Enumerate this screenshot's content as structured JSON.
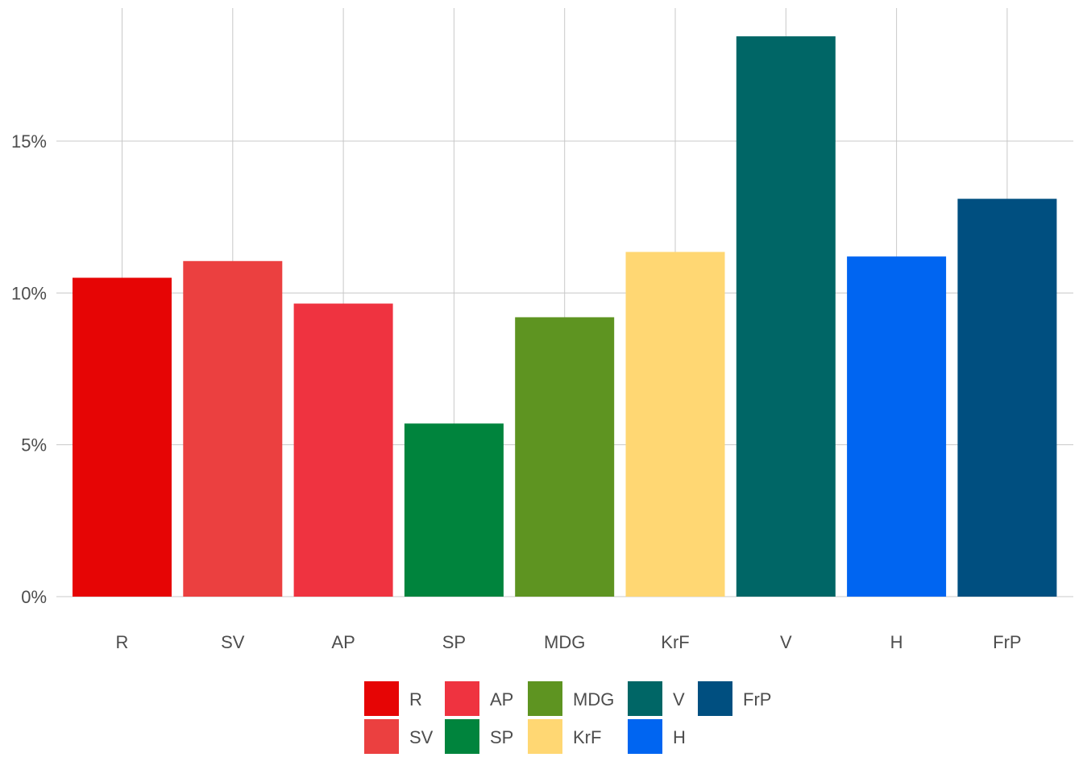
{
  "chart_data": {
    "type": "bar",
    "title": "",
    "xlabel": "",
    "ylabel": "",
    "categories": [
      "R",
      "SV",
      "AP",
      "SP",
      "MDG",
      "KrF",
      "V",
      "H",
      "FrP"
    ],
    "values": [
      10.5,
      11.05,
      9.65,
      5.7,
      9.2,
      11.35,
      18.45,
      11.2,
      13.1
    ],
    "colors": [
      "#e60505",
      "#eb4040",
      "#ef3340",
      "#00843d",
      "#5e9421",
      "#ffd773",
      "#006666",
      "#0065f1",
      "#004f80"
    ],
    "ylim": [
      0,
      19
    ],
    "y_ticks": [
      0,
      5,
      10,
      15
    ],
    "y_tick_labels": [
      "0%",
      "5%",
      "10%",
      "15%"
    ],
    "grid": true,
    "legend": {
      "position": "bottom",
      "entries": [
        "R",
        "SV",
        "AP",
        "SP",
        "MDG",
        "KrF",
        "V",
        "H",
        "FrP"
      ]
    }
  }
}
